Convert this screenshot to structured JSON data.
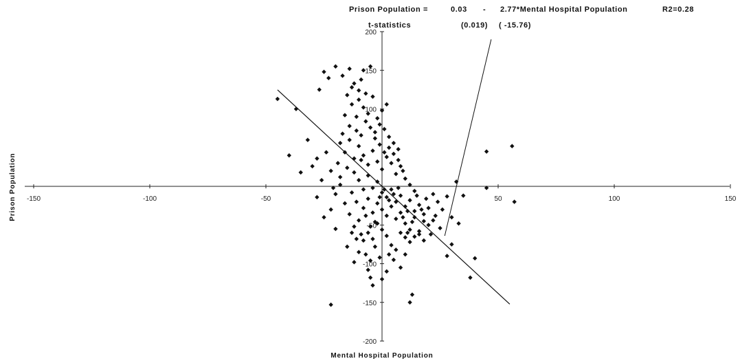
{
  "chart_data": {
    "type": "scatter",
    "xlabel": "Mental Hospital Population",
    "ylabel": "Prison Population",
    "xlim": [
      -150,
      150
    ],
    "ylim": [
      -200,
      200
    ],
    "x_ticks": [
      -150,
      -100,
      -50,
      50,
      100,
      150
    ],
    "y_ticks": [
      200,
      150,
      100,
      -50,
      -100,
      -150,
      -200
    ],
    "x_tick_labels": [
      "-150",
      "-100",
      "-50",
      "50",
      "100",
      "150"
    ],
    "y_tick_labels": [
      "200",
      "150",
      "100",
      "-50",
      "-100",
      "-150",
      "-200"
    ],
    "grid": false,
    "marker": "diamond",
    "annotation": {
      "equation_label": "Prison Population =",
      "intercept": "0.03",
      "minus": "-",
      "slope_term": "2.77*Mental Hospital Population",
      "r2": "R2=0.28",
      "tstat_label": "t-statistics",
      "t_intercept": "(0.019)",
      "t_slope": "( -15.76)"
    },
    "regression": {
      "intercept": 0.03,
      "slope": -2.77,
      "x_range": [
        -45,
        55
      ]
    },
    "pointer_line": {
      "from": [
        27,
        -64
      ],
      "to": [
        47,
        190
      ]
    },
    "points": [
      [
        -45,
        113
      ],
      [
        -37,
        100
      ],
      [
        -27,
        125
      ],
      [
        -25,
        148
      ],
      [
        -23,
        140
      ],
      [
        -20,
        155
      ],
      [
        -14,
        152
      ],
      [
        -17,
        143
      ],
      [
        -12,
        133
      ],
      [
        -10,
        124
      ],
      [
        -8,
        150
      ],
      [
        -5,
        155
      ],
      [
        -5,
        -118
      ],
      [
        -22,
        -153
      ],
      [
        13,
        -140
      ],
      [
        12,
        -150
      ],
      [
        45,
        45
      ],
      [
        56,
        52
      ],
      [
        57,
        -20
      ],
      [
        45,
        -2
      ],
      [
        33,
        -48
      ],
      [
        35,
        -12
      ],
      [
        40,
        -93
      ],
      [
        38,
        -118
      ],
      [
        30,
        -75
      ],
      [
        28,
        -90
      ],
      [
        25,
        -54
      ],
      [
        23,
        -38
      ],
      [
        28,
        -13
      ],
      [
        30,
        -40
      ],
      [
        20,
        -28
      ],
      [
        18,
        -45
      ],
      [
        32,
        6
      ],
      [
        -40,
        40
      ],
      [
        -35,
        18
      ],
      [
        -30,
        26
      ],
      [
        -28,
        -14
      ],
      [
        -28,
        36
      ],
      [
        -25,
        -40
      ],
      [
        -32,
        60
      ],
      [
        -22,
        -30
      ],
      [
        -20,
        -10
      ],
      [
        -22,
        20
      ],
      [
        -18,
        12
      ],
      [
        -20,
        -55
      ],
      [
        -15,
        -78
      ],
      [
        -12,
        -98
      ],
      [
        -10,
        -85
      ],
      [
        -8,
        -70
      ],
      [
        -6,
        -108
      ],
      [
        -4,
        -128
      ],
      [
        0,
        -120
      ],
      [
        2,
        -110
      ],
      [
        5,
        -95
      ],
      [
        8,
        -105
      ],
      [
        10,
        -88
      ],
      [
        12,
        -72
      ],
      [
        14,
        -65
      ],
      [
        16,
        -58
      ],
      [
        18,
        -70
      ],
      [
        -16,
        92
      ],
      [
        -13,
        106
      ],
      [
        -10,
        112
      ],
      [
        -8,
        102
      ],
      [
        -6,
        94
      ],
      [
        -4,
        116
      ],
      [
        -2,
        88
      ],
      [
        0,
        98
      ],
      [
        2,
        106
      ],
      [
        -14,
        78
      ],
      [
        -11,
        72
      ],
      [
        -9,
        66
      ],
      [
        -7,
        84
      ],
      [
        -5,
        76
      ],
      [
        -3,
        70
      ],
      [
        -1,
        80
      ],
      [
        1,
        74
      ],
      [
        3,
        64
      ],
      [
        5,
        56
      ],
      [
        7,
        48
      ],
      [
        -18,
        56
      ],
      [
        -16,
        44
      ],
      [
        -14,
        60
      ],
      [
        -12,
        36
      ],
      [
        -10,
        52
      ],
      [
        -8,
        40
      ],
      [
        -6,
        28
      ],
      [
        -4,
        46
      ],
      [
        -2,
        32
      ],
      [
        0,
        22
      ],
      [
        2,
        38
      ],
      [
        4,
        30
      ],
      [
        6,
        16
      ],
      [
        8,
        26
      ],
      [
        10,
        10
      ],
      [
        12,
        2
      ],
      [
        14,
        -6
      ],
      [
        -12,
        18
      ],
      [
        -10,
        8
      ],
      [
        -8,
        -4
      ],
      [
        -6,
        14
      ],
      [
        -4,
        -2
      ],
      [
        -2,
        6
      ],
      [
        0,
        -8
      ],
      [
        2,
        -14
      ],
      [
        4,
        -4
      ],
      [
        6,
        -20
      ],
      [
        8,
        -12
      ],
      [
        10,
        -26
      ],
      [
        12,
        -18
      ],
      [
        14,
        -32
      ],
      [
        16,
        -24
      ],
      [
        18,
        -36
      ],
      [
        20,
        -50
      ],
      [
        22,
        -44
      ],
      [
        -2,
        -22
      ],
      [
        0,
        -30
      ],
      [
        2,
        -38
      ],
      [
        4,
        -26
      ],
      [
        6,
        -42
      ],
      [
        8,
        -34
      ],
      [
        10,
        -48
      ],
      [
        12,
        -56
      ],
      [
        14,
        -40
      ],
      [
        16,
        -62
      ],
      [
        -6,
        -16
      ],
      [
        -4,
        -34
      ],
      [
        -8,
        -28
      ],
      [
        -10,
        -44
      ],
      [
        -12,
        -52
      ],
      [
        -6,
        -60
      ],
      [
        -4,
        -68
      ],
      [
        -2,
        -48
      ],
      [
        0,
        -56
      ],
      [
        2,
        -64
      ],
      [
        4,
        -76
      ],
      [
        6,
        -82
      ],
      [
        8,
        -60
      ],
      [
        10,
        -66
      ],
      [
        -14,
        -36
      ],
      [
        -16,
        -22
      ],
      [
        -18,
        2
      ],
      [
        -15,
        24
      ],
      [
        -13,
        -8
      ],
      [
        -11,
        -20
      ],
      [
        -9,
        34
      ],
      [
        -7,
        -38
      ],
      [
        -5,
        -52
      ],
      [
        -3,
        -46
      ],
      [
        -1,
        -14
      ],
      [
        1,
        -4
      ],
      [
        3,
        -18
      ],
      [
        5,
        -10
      ],
      [
        7,
        -2
      ],
      [
        9,
        -40
      ],
      [
        11,
        -32
      ],
      [
        13,
        -46
      ],
      [
        15,
        -12
      ],
      [
        17,
        -30
      ],
      [
        19,
        -16
      ],
      [
        -26,
        8
      ],
      [
        -24,
        44
      ],
      [
        -21,
        -2
      ],
      [
        -19,
        30
      ],
      [
        -17,
        68
      ],
      [
        -15,
        118
      ],
      [
        -13,
        128
      ],
      [
        -11,
        90
      ],
      [
        -9,
        138
      ],
      [
        -7,
        120
      ],
      [
        -3,
        62
      ],
      [
        -1,
        54
      ],
      [
        1,
        44
      ],
      [
        3,
        50
      ],
      [
        5,
        42
      ],
      [
        7,
        34
      ],
      [
        9,
        20
      ],
      [
        11,
        -60
      ],
      [
        3,
        -88
      ],
      [
        -1,
        -92
      ],
      [
        -3,
        -78
      ],
      [
        -5,
        -96
      ],
      [
        -7,
        -88
      ],
      [
        -9,
        -62
      ],
      [
        -11,
        -68
      ],
      [
        -13,
        -60
      ],
      [
        24,
        -20
      ],
      [
        22,
        -10
      ],
      [
        26,
        -30
      ],
      [
        21,
        -62
      ]
    ]
  }
}
